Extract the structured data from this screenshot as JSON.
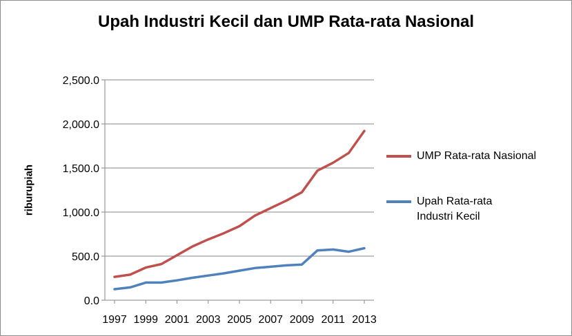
{
  "chart_data": {
    "type": "line",
    "title": "Upah Industri Kecil dan UMP Rata-rata Nasional",
    "ylabel": "riburupiah",
    "xlabel": "",
    "ylim": [
      0,
      2500
    ],
    "yticks": [
      "0.0",
      "500.0",
      "1,000.0",
      "1,500.0",
      "2,000.0",
      "2,500.0"
    ],
    "xticks": [
      "1997",
      "1999",
      "2001",
      "2003",
      "2005",
      "2007",
      "2009",
      "2011",
      "2013"
    ],
    "x": [
      1997,
      1998,
      1999,
      2000,
      2001,
      2002,
      2003,
      2004,
      2005,
      2006,
      2007,
      2008,
      2009,
      2010,
      2011,
      2012,
      2013
    ],
    "grid": true,
    "legend_position": "right",
    "series": [
      {
        "name": "UMP Rata-rata Nasional",
        "color": "#c0504d",
        "values": [
          265,
          290,
          370,
          410,
          510,
          610,
          690,
          760,
          840,
          960,
          1045,
          1130,
          1225,
          1470,
          1560,
          1670,
          1920
        ]
      },
      {
        "name": "Upah Rata-rata Industri Kecil",
        "color": "#4f81bd",
        "values": [
          125,
          145,
          200,
          200,
          225,
          255,
          280,
          305,
          335,
          365,
          380,
          395,
          405,
          565,
          575,
          550,
          590
        ]
      }
    ]
  }
}
